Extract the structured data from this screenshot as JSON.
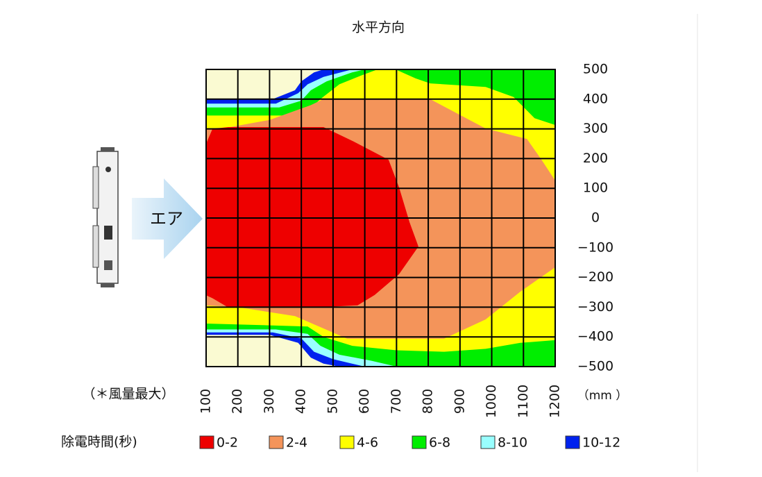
{
  "chart_data": {
    "type": "contour",
    "title": "水平方向",
    "note": "（＊風量最大）",
    "x_unit": "（mm ）",
    "arrow_label": "エア",
    "legend_title": "除電時間(秒)",
    "background": "#fafad2",
    "xlim": [
      100,
      1200
    ],
    "ylim": [
      -500,
      500
    ],
    "xticks": [
      100,
      200,
      300,
      400,
      500,
      600,
      700,
      800,
      900,
      1000,
      1100,
      1200
    ],
    "yticks": [
      500,
      400,
      300,
      200,
      100,
      0,
      {
        "value": -100,
        "label": "−100"
      },
      {
        "value": -200,
        "label": "−200"
      },
      {
        "value": -300,
        "label": "−300"
      },
      {
        "value": -400,
        "label": "−400"
      },
      {
        "value": -500,
        "label": "−500"
      }
    ],
    "grid": true,
    "series": [
      {
        "name": "0-2",
        "color": "#ee0000",
        "x": [
          100,
          120,
          170,
          470,
          560,
          675,
          708,
          741,
          769,
          708,
          631,
          577,
          435,
          170,
          120,
          100
        ],
        "y": [
          250,
          300,
          306,
          306,
          260,
          196,
          103,
          -14,
          -96,
          -189,
          -259,
          -294,
          -301,
          -301,
          -270,
          -260
        ]
      },
      {
        "name": "2-4",
        "color": "#f4945a",
        "x": [
          100,
          170,
          300,
          430,
          470,
          806,
          981,
          1111,
          1157,
          1200,
          1200,
          1090,
          981,
          850,
          544,
          380,
          200,
          100
        ],
        "y": [
          301,
          305,
          330,
          380,
          400,
          400,
          301,
          266,
          196,
          126,
          -166,
          -248,
          -341,
          -406,
          -406,
          -330,
          -300,
          -294
        ]
      },
      {
        "name": "4-6",
        "color": "#ffff00",
        "x": [
          100,
          340,
          420,
          460,
          520,
          590,
          640,
          697,
          760,
          806,
          981,
          1069,
          1135,
          1200,
          1200,
          1090,
          981,
          850,
          700,
          560,
          470,
          420,
          100
        ],
        "y": [
          345,
          345,
          360,
          400,
          450,
          480,
          500,
          500,
          470,
          453,
          441,
          407,
          336,
          313,
          -411,
          -420,
          -440,
          -450,
          -445,
          -430,
          -400,
          -365,
          -355
        ]
      },
      {
        "name": "6-8",
        "color": "#00ee00",
        "x": [
          100,
          330,
          400,
          430,
          480,
          560,
          600,
          1200,
          1200,
          700,
          620,
          520,
          460,
          420,
          320,
          100
        ],
        "y": [
          372,
          372,
          395,
          430,
          460,
          490,
          500,
          500,
          -500,
          -500,
          -480,
          -460,
          -430,
          -390,
          -375,
          -375
        ]
      },
      {
        "name": "8-10",
        "color": "#99ffff",
        "x": [
          100,
          320,
          390,
          420,
          470,
          560,
          1200,
          1200,
          600,
          560,
          500,
          440,
          400,
          310,
          100
        ],
        "y": [
          385,
          385,
          420,
          450,
          475,
          500,
          500,
          -500,
          -500,
          -490,
          -475,
          -450,
          -405,
          -385,
          -385
        ]
      },
      {
        "name": "10-12",
        "color": "#0022ee",
        "x": [
          100,
          310,
          380,
          400,
          440,
          470,
          1200,
          1200,
          520,
          470,
          430,
          390,
          300,
          100
        ],
        "y": [
          400,
          400,
          430,
          460,
          490,
          500,
          500,
          -500,
          -500,
          -490,
          -470,
          -420,
          -393,
          -393
        ]
      }
    ]
  }
}
